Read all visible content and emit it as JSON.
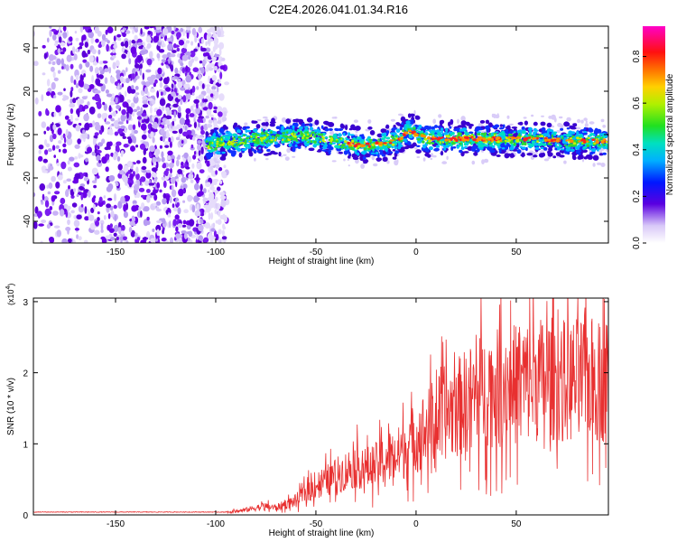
{
  "title": "C2E4.2026.041.01.34.R16",
  "colors": {
    "snr_line": "#e83030",
    "noise_purple": "#6a00e8",
    "axis": "#000000",
    "background": "#ffffff"
  },
  "chart_data": [
    {
      "type": "heatmap",
      "name": "spectrogram",
      "xlabel": "Height of straight line (km)",
      "ylabel": "Frequency (Hz)",
      "xlim": [
        -191,
        96
      ],
      "ylim": [
        -50,
        50
      ],
      "xticks": [
        -150,
        -100,
        -50,
        0,
        50
      ],
      "yticks": [
        -40,
        -20,
        0,
        20,
        40
      ],
      "xtick_labels": [
        "-150",
        "-100",
        "-50",
        "0",
        "50"
      ],
      "ytick_labels": [
        "-40",
        "-20",
        "0",
        "20",
        "40"
      ],
      "noise_region_x": [
        -191,
        -95
      ],
      "signal_region_x": [
        -105,
        96
      ],
      "signal_center_hz": [
        {
          "x": -105,
          "y": -5
        },
        {
          "x": -90,
          "y": -3
        },
        {
          "x": -70,
          "y": -1
        },
        {
          "x": -55,
          "y": -1
        },
        {
          "x": -45,
          "y": -2
        },
        {
          "x": -35,
          "y": -4
        },
        {
          "x": -25,
          "y": -5
        },
        {
          "x": -10,
          "y": -3
        },
        {
          "x": -3,
          "y": 2
        },
        {
          "x": 5,
          "y": -2
        },
        {
          "x": 20,
          "y": -2
        },
        {
          "x": 40,
          "y": -2
        },
        {
          "x": 60,
          "y": -2
        },
        {
          "x": 80,
          "y": -3
        },
        {
          "x": 96,
          "y": -3
        }
      ],
      "colorbar": {
        "label": "Normalized spectral amplitude",
        "range": [
          0,
          0.93
        ],
        "ticks": [
          0,
          0.2,
          0.4,
          0.6,
          0.8
        ],
        "tick_labels": [
          "0.0",
          "0.2",
          "0.4",
          "0.6",
          "0.8"
        ]
      }
    },
    {
      "type": "line",
      "name": "snr",
      "xlabel": "Height of straight line (km)",
      "ylabel": "SNR (10 * v/v)",
      "ylabel_multiplier": "(x10",
      "ylabel_multiplier_exp": "4",
      "ylabel_multiplier_close": ")",
      "xlim": [
        -191,
        96
      ],
      "ylim": [
        0,
        3.05
      ],
      "xticks": [
        -150,
        -100,
        -50,
        0,
        50
      ],
      "yticks": [
        0,
        1,
        2,
        3
      ],
      "xtick_labels": [
        "-150",
        "-100",
        "-50",
        "0",
        "50"
      ],
      "ytick_labels": [
        "0",
        "1",
        "2",
        "3"
      ],
      "series": [
        {
          "name": "SNR",
          "x": [
            -191,
            -150,
            -110,
            -100,
            -95,
            -90,
            -85,
            -80,
            -75,
            -70,
            -65,
            -60,
            -55,
            -50,
            -45,
            -40,
            -35,
            -30,
            -25,
            -20,
            -15,
            -10,
            -5,
            0,
            5,
            10,
            15,
            20,
            25,
            30,
            35,
            40,
            45,
            50,
            55,
            60,
            65,
            70,
            75,
            80,
            85,
            90,
            96
          ],
          "values": [
            0.04,
            0.04,
            0.04,
            0.04,
            0.04,
            0.05,
            0.07,
            0.1,
            0.12,
            0.1,
            0.15,
            0.2,
            0.32,
            0.42,
            0.48,
            0.55,
            0.62,
            0.7,
            0.65,
            0.7,
            0.78,
            0.82,
            0.95,
            1.1,
            1.2,
            1.32,
            1.45,
            1.5,
            1.6,
            1.7,
            1.75,
            1.78,
            1.82,
            1.85,
            1.88,
            1.9,
            1.92,
            1.9,
            1.88,
            1.9,
            1.92,
            1.9,
            1.9
          ]
        }
      ]
    }
  ]
}
